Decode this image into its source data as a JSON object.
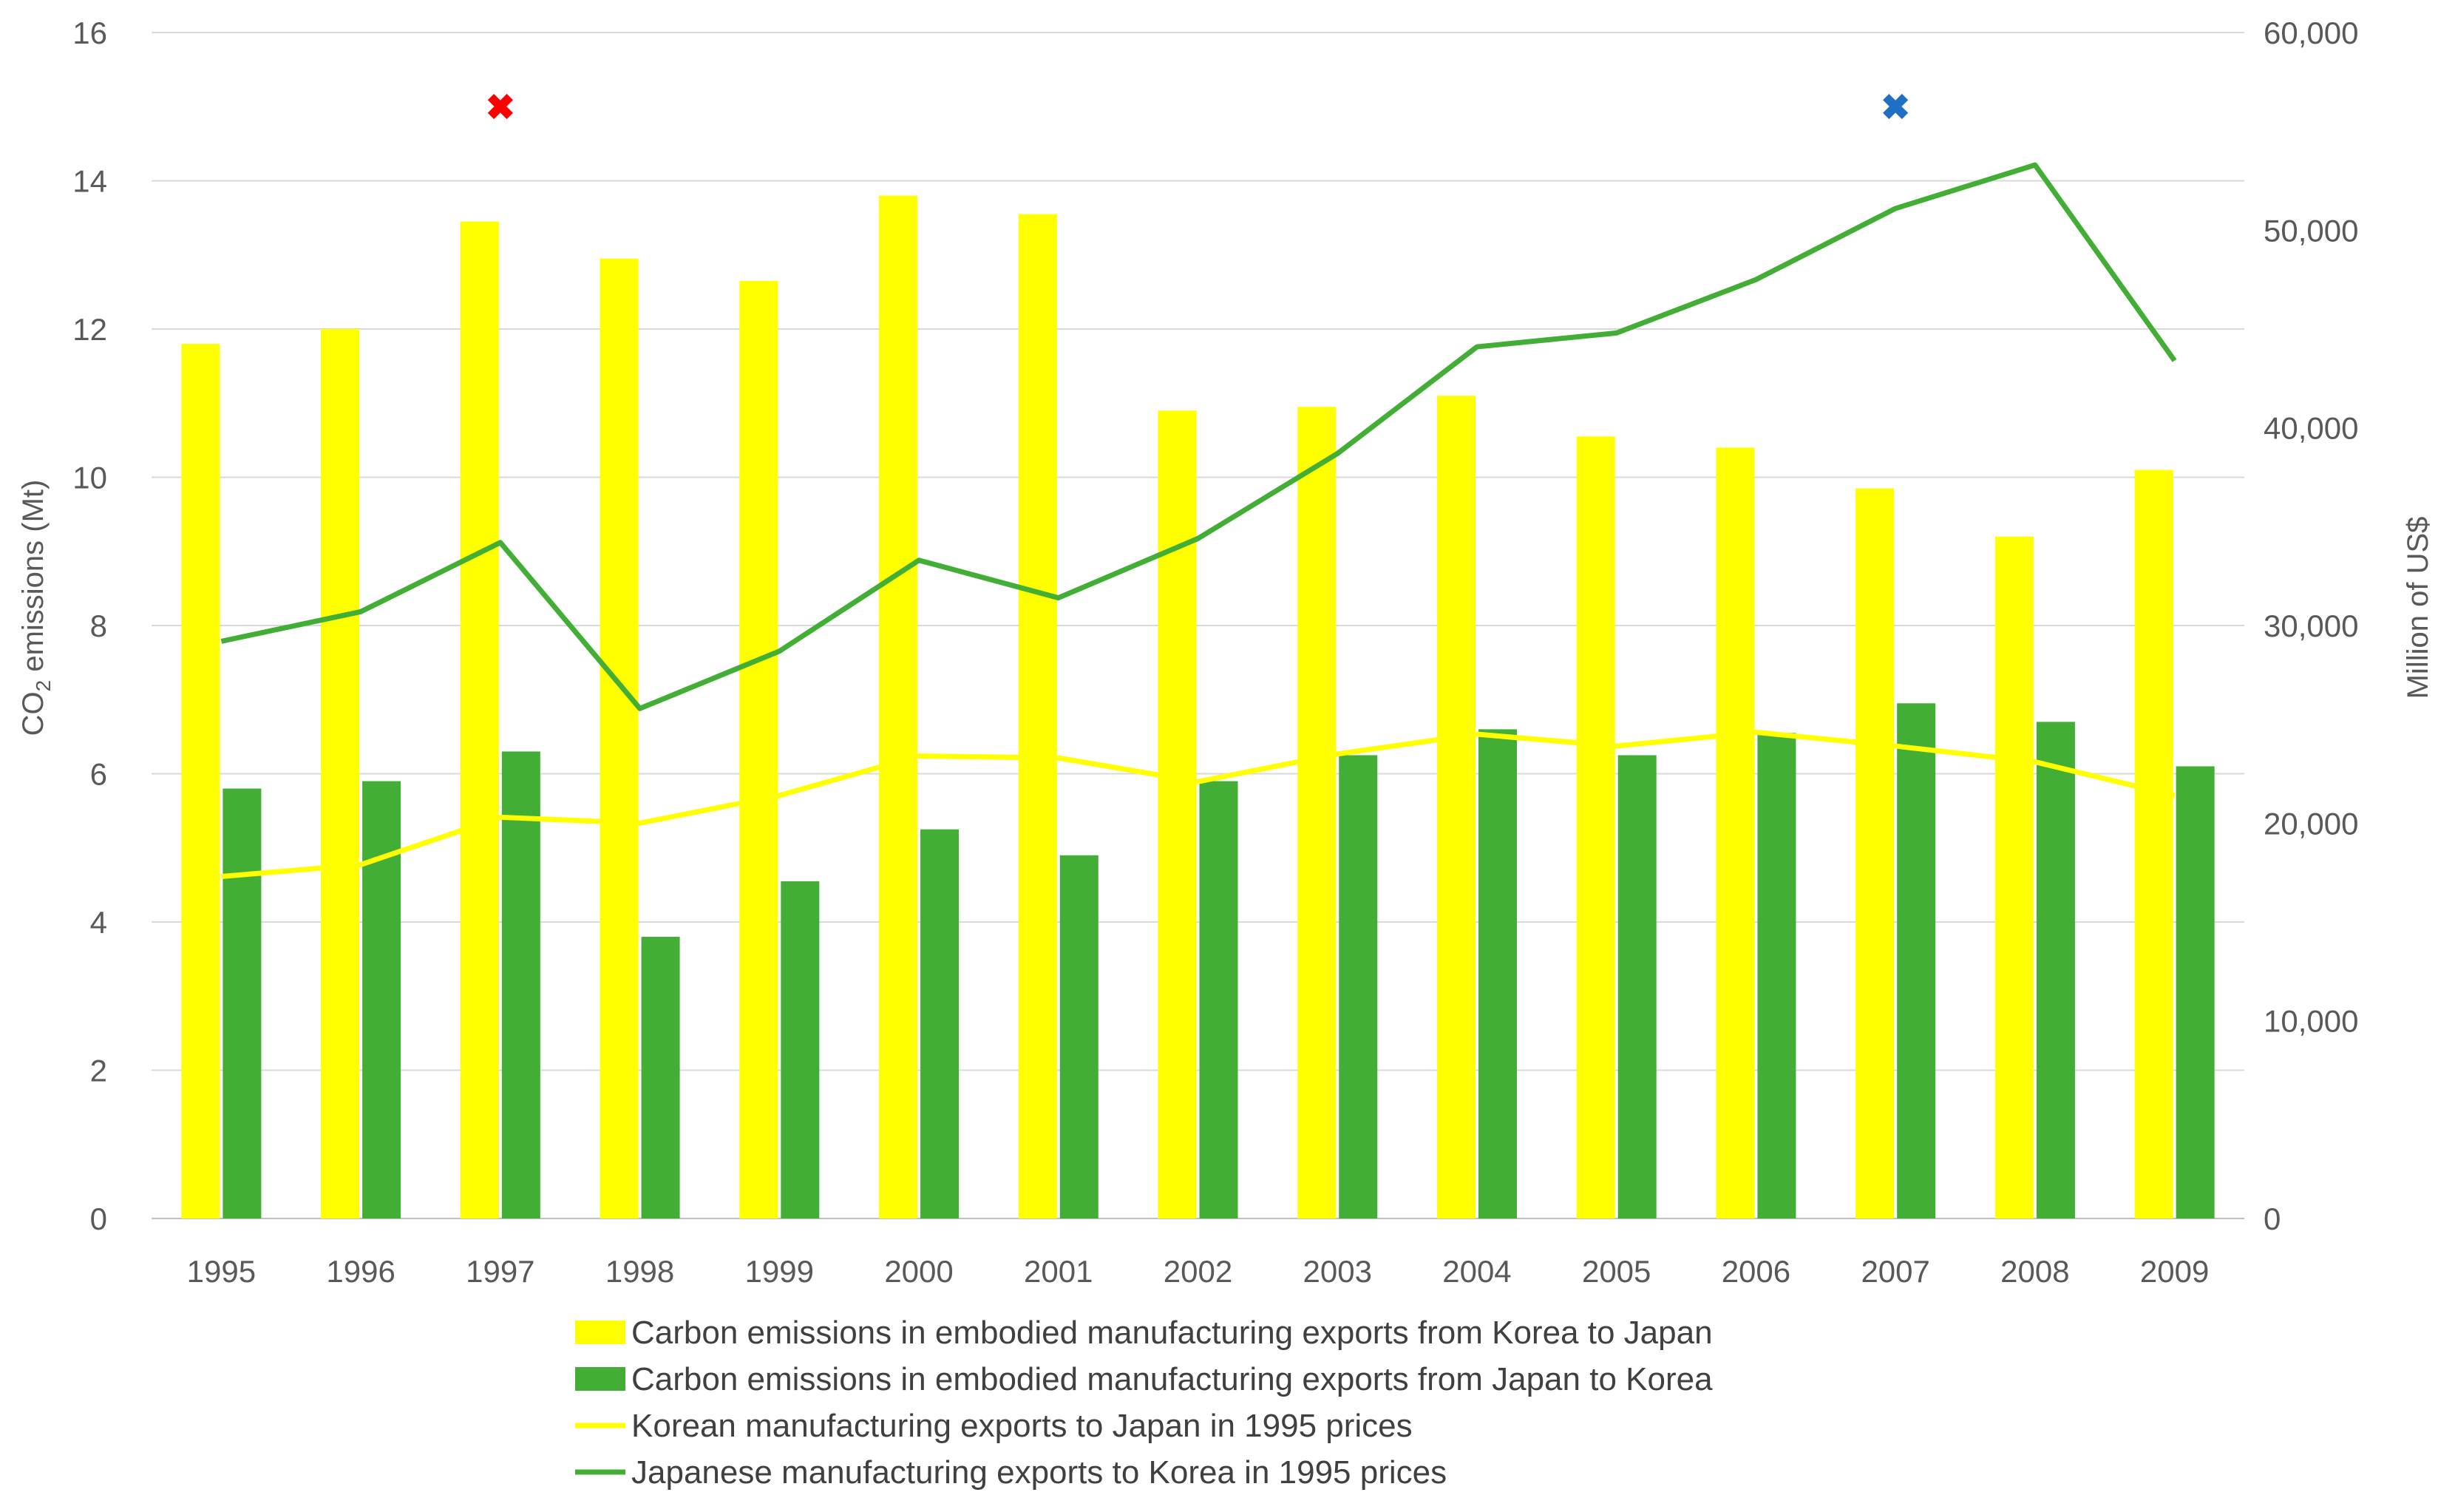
{
  "chart_data": {
    "type": "bar",
    "categories": [
      "1995",
      "1996",
      "1997",
      "1998",
      "1999",
      "2000",
      "2001",
      "2002",
      "2003",
      "2004",
      "2005",
      "2006",
      "2007",
      "2008",
      "2009"
    ],
    "series": [
      {
        "name": "Carbon emissions in embodied manufacturing exports from Korea to Japan",
        "kind": "bar",
        "axis": "left",
        "color": "#FFFF00",
        "values": [
          11.8,
          12.0,
          13.45,
          12.95,
          12.65,
          13.8,
          13.55,
          10.9,
          10.95,
          11.1,
          10.55,
          10.4,
          9.85,
          9.2,
          10.1
        ]
      },
      {
        "name": "Carbon emissions in embodied manufacturing exports from Japan to Korea",
        "kind": "bar",
        "axis": "left",
        "color": "#43AE35",
        "values": [
          5.8,
          5.9,
          6.3,
          3.8,
          4.55,
          5.25,
          4.9,
          5.9,
          6.25,
          6.6,
          6.25,
          6.55,
          6.95,
          6.7,
          6.1
        ]
      },
      {
        "name": "Korean manufacturing exports to Japan in 1995 prices",
        "kind": "line",
        "axis": "right",
        "color": "#FFFF00",
        "values": [
          17300,
          17900,
          20300,
          20000,
          21400,
          23400,
          23300,
          22100,
          23500,
          24500,
          23900,
          24600,
          23900,
          23100,
          21400
        ]
      },
      {
        "name": "Japanese manufacturing exports to Korea in 1995 prices",
        "kind": "line",
        "axis": "right",
        "color": "#43AE35",
        "values": [
          29200,
          30700,
          34200,
          25800,
          28700,
          33300,
          31400,
          34400,
          38700,
          44100,
          44800,
          47500,
          51100,
          53300,
          43400
        ]
      }
    ],
    "y_left": {
      "label": "CO2 emissions (Mt)",
      "label_main": "CO",
      "label_sub": "2",
      "label_rest": " emissions (Mt)",
      "lim": [
        0,
        16
      ],
      "ticks": [
        0,
        2,
        4,
        6,
        8,
        10,
        12,
        14,
        16
      ]
    },
    "y_right": {
      "label": "Million of US$",
      "lim": [
        0,
        60000
      ],
      "ticks": [
        0,
        10000,
        20000,
        30000,
        40000,
        50000,
        60000
      ],
      "tick_labels": [
        "0",
        "10,000",
        "20,000",
        "30,000",
        "40,000",
        "50,000",
        "60,000"
      ]
    },
    "markers": [
      {
        "category": "1997",
        "value": 15,
        "axis": "left",
        "symbol": "✖",
        "color": "#FF0000"
      },
      {
        "category": "2007",
        "value": 15,
        "axis": "left",
        "symbol": "✖",
        "color": "#1F6FC5"
      }
    ],
    "grid": true,
    "legend_position": "bottom"
  }
}
